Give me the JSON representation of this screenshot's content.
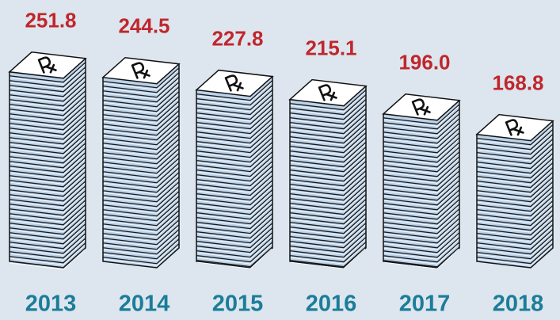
{
  "chart_data": {
    "type": "pictograph-stack",
    "categories": [
      "2013",
      "2014",
      "2015",
      "2016",
      "2017",
      "2018"
    ],
    "values": [
      251.8,
      244.5,
      227.8,
      215.1,
      196.0,
      168.8
    ],
    "value_labels": [
      "251.8",
      "244.5",
      "227.8",
      "215.1",
      "196.0",
      "168.8"
    ],
    "color": "#bcd3ea",
    "label_color": "#c0262c",
    "category_color": "#1b7d99"
  }
}
